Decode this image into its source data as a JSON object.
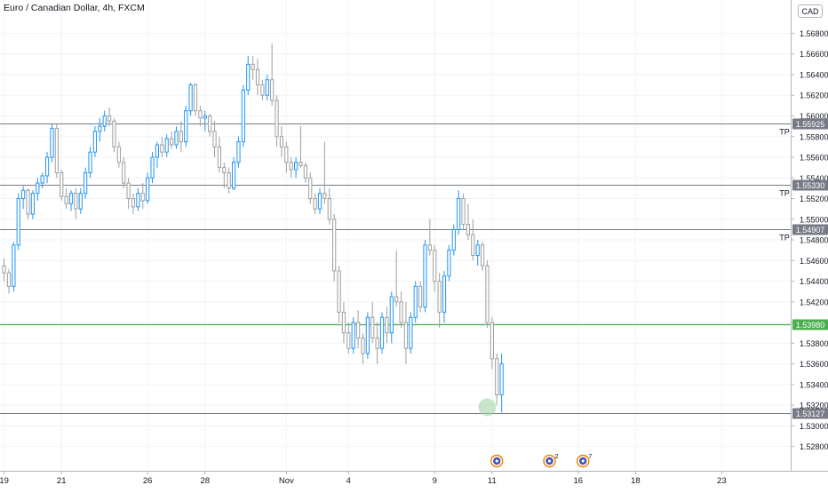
{
  "header": {
    "title": "Euro / Canadian Dollar, 4h, FXCM",
    "currency": "CAD"
  },
  "colors": {
    "up": "#2196f3",
    "down": "#9e9e9e",
    "level_line": "#787b86",
    "entry_line": "#4caf50",
    "marker": "#a5d6a7",
    "axis_text": "#131722"
  },
  "chart_data": {
    "type": "candlestick",
    "y_axis": {
      "min": 1.5275,
      "max": 1.5705,
      "ticks": [
        "1.56800",
        "1.56600",
        "1.56400",
        "1.56200",
        "1.56000",
        "1.55800",
        "1.55600",
        "1.55400",
        "1.55200",
        "1.55000",
        "1.54800",
        "1.54600",
        "1.54400",
        "1.54200",
        "1.54000",
        "1.53800",
        "1.53600",
        "1.53400",
        "1.53200",
        "1.53000",
        "1.52800"
      ]
    },
    "x_axis": {
      "ticks": [
        {
          "label": "19",
          "slot": 0
        },
        {
          "label": "21",
          "slot": 12
        },
        {
          "label": "26",
          "slot": 30
        },
        {
          "label": "28",
          "slot": 42
        },
        {
          "label": "Nov",
          "slot": 59
        },
        {
          "label": "4",
          "slot": 72
        },
        {
          "label": "9",
          "slot": 90
        },
        {
          "label": "11",
          "slot": 102
        },
        {
          "label": "16",
          "slot": 120
        },
        {
          "label": "18",
          "slot": 132
        },
        {
          "label": "23",
          "slot": 150
        }
      ]
    },
    "levels": [
      {
        "value": 1.55925,
        "label": "1.55925",
        "tag": "TP",
        "kind": "tp"
      },
      {
        "value": 1.5533,
        "label": "1.55330",
        "tag": "TP",
        "kind": "tp"
      },
      {
        "value": 1.54907,
        "label": "1.54907",
        "tag": "TP",
        "kind": "tp"
      },
      {
        "value": 1.5398,
        "label": "1.53980",
        "tag": "",
        "kind": "entry"
      },
      {
        "value": 1.53127,
        "label": "1.53127",
        "tag": "",
        "kind": "low"
      }
    ],
    "candles": [
      [
        1.5455,
        1.5462,
        1.544,
        1.5448
      ],
      [
        1.5448,
        1.5452,
        1.5428,
        1.5435
      ],
      [
        1.5435,
        1.5478,
        1.543,
        1.5475
      ],
      [
        1.5475,
        1.5525,
        1.547,
        1.552
      ],
      [
        1.552,
        1.5532,
        1.551,
        1.5528
      ],
      [
        1.5528,
        1.553,
        1.55,
        1.5505
      ],
      [
        1.5505,
        1.5528,
        1.55,
        1.5525
      ],
      [
        1.5525,
        1.554,
        1.5518,
        1.5535
      ],
      [
        1.5535,
        1.5545,
        1.553,
        1.5542
      ],
      [
        1.5542,
        1.5565,
        1.5535,
        1.556
      ],
      [
        1.556,
        1.5592,
        1.5555,
        1.5588
      ],
      [
        1.5588,
        1.5592,
        1.554,
        1.5545
      ],
      [
        1.5545,
        1.5548,
        1.5518,
        1.5522
      ],
      [
        1.5522,
        1.553,
        1.551,
        1.5515
      ],
      [
        1.5515,
        1.5528,
        1.5508,
        1.5525
      ],
      [
        1.5525,
        1.553,
        1.55,
        1.551
      ],
      [
        1.551,
        1.553,
        1.5505,
        1.5525
      ],
      [
        1.5525,
        1.555,
        1.552,
        1.5545
      ],
      [
        1.5545,
        1.557,
        1.554,
        1.5565
      ],
      [
        1.5565,
        1.559,
        1.556,
        1.5585
      ],
      [
        1.5585,
        1.5598,
        1.5575,
        1.559
      ],
      [
        1.559,
        1.5605,
        1.5585,
        1.56
      ],
      [
        1.56,
        1.5608,
        1.559,
        1.5595
      ],
      [
        1.5595,
        1.5598,
        1.5565,
        1.557
      ],
      [
        1.557,
        1.5575,
        1.555,
        1.5555
      ],
      [
        1.5555,
        1.556,
        1.553,
        1.5535
      ],
      [
        1.5535,
        1.554,
        1.551,
        1.552
      ],
      [
        1.552,
        1.5525,
        1.5505,
        1.5512
      ],
      [
        1.5512,
        1.553,
        1.5508,
        1.5525
      ],
      [
        1.5525,
        1.5535,
        1.551,
        1.5518
      ],
      [
        1.5518,
        1.5545,
        1.5515,
        1.554
      ],
      [
        1.554,
        1.5565,
        1.5535,
        1.556
      ],
      [
        1.556,
        1.5575,
        1.555,
        1.5572
      ],
      [
        1.5572,
        1.558,
        1.556,
        1.5565
      ],
      [
        1.5565,
        1.5582,
        1.556,
        1.5578
      ],
      [
        1.5578,
        1.5585,
        1.5568,
        1.5572
      ],
      [
        1.5572,
        1.559,
        1.5568,
        1.5585
      ],
      [
        1.5585,
        1.5595,
        1.5565,
        1.5575
      ],
      [
        1.5575,
        1.561,
        1.557,
        1.5605
      ],
      [
        1.5605,
        1.5632,
        1.56,
        1.563
      ],
      [
        1.563,
        1.5632,
        1.56,
        1.5605
      ],
      [
        1.5605,
        1.561,
        1.559,
        1.5598
      ],
      [
        1.5598,
        1.5605,
        1.5585,
        1.56
      ],
      [
        1.56,
        1.5602,
        1.558,
        1.5585
      ],
      [
        1.5585,
        1.5595,
        1.556,
        1.557
      ],
      [
        1.557,
        1.558,
        1.5545,
        1.555
      ],
      [
        1.555,
        1.5555,
        1.553,
        1.5545
      ],
      [
        1.5545,
        1.555,
        1.5525,
        1.553
      ],
      [
        1.553,
        1.556,
        1.5528,
        1.5555
      ],
      [
        1.5555,
        1.558,
        1.555,
        1.5575
      ],
      [
        1.5575,
        1.563,
        1.557,
        1.5625
      ],
      [
        1.5625,
        1.5658,
        1.562,
        1.565
      ],
      [
        1.565,
        1.5658,
        1.5635,
        1.5645
      ],
      [
        1.5645,
        1.5655,
        1.562,
        1.563
      ],
      [
        1.563,
        1.5635,
        1.5615,
        1.562
      ],
      [
        1.562,
        1.564,
        1.5615,
        1.5635
      ],
      [
        1.5635,
        1.567,
        1.561,
        1.5615
      ],
      [
        1.5615,
        1.562,
        1.557,
        1.558
      ],
      [
        1.558,
        1.559,
        1.556,
        1.557
      ],
      [
        1.557,
        1.5575,
        1.5545,
        1.5555
      ],
      [
        1.5555,
        1.556,
        1.554,
        1.5548
      ],
      [
        1.5548,
        1.556,
        1.554,
        1.5555
      ],
      [
        1.5555,
        1.559,
        1.555,
        1.5552
      ],
      [
        1.5552,
        1.5555,
        1.5535,
        1.554
      ],
      [
        1.554,
        1.5545,
        1.5515,
        1.552
      ],
      [
        1.552,
        1.5525,
        1.5505,
        1.551
      ],
      [
        1.551,
        1.553,
        1.5505,
        1.5525
      ],
      [
        1.5525,
        1.5575,
        1.5515,
        1.552
      ],
      [
        1.552,
        1.553,
        1.5495,
        1.55
      ],
      [
        1.55,
        1.5505,
        1.544,
        1.545
      ],
      [
        1.545,
        1.5455,
        1.54,
        1.541
      ],
      [
        1.541,
        1.542,
        1.538,
        1.539
      ],
      [
        1.539,
        1.54,
        1.537,
        1.5375
      ],
      [
        1.5375,
        1.5405,
        1.537,
        1.54
      ],
      [
        1.54,
        1.5412,
        1.5375,
        1.5385
      ],
      [
        1.5385,
        1.539,
        1.536,
        1.537
      ],
      [
        1.537,
        1.541,
        1.5365,
        1.5405
      ],
      [
        1.5405,
        1.542,
        1.538,
        1.5385
      ],
      [
        1.5385,
        1.54,
        1.536,
        1.5375
      ],
      [
        1.5375,
        1.541,
        1.537,
        1.5405
      ],
      [
        1.5405,
        1.5415,
        1.538,
        1.539
      ],
      [
        1.539,
        1.543,
        1.538,
        1.5425
      ],
      [
        1.5425,
        1.547,
        1.5415,
        1.542
      ],
      [
        1.542,
        1.543,
        1.5395,
        1.54
      ],
      [
        1.54,
        1.542,
        1.536,
        1.5375
      ],
      [
        1.5375,
        1.541,
        1.537,
        1.5405
      ],
      [
        1.5405,
        1.544,
        1.54,
        1.5435
      ],
      [
        1.5435,
        1.544,
        1.541,
        1.5415
      ],
      [
        1.5415,
        1.548,
        1.541,
        1.5475
      ],
      [
        1.5475,
        1.55,
        1.5465,
        1.547
      ],
      [
        1.547,
        1.5475,
        1.543,
        1.544
      ],
      [
        1.544,
        1.5448,
        1.5395,
        1.541
      ],
      [
        1.541,
        1.545,
        1.54,
        1.5445
      ],
      [
        1.5445,
        1.5475,
        1.544,
        1.547
      ],
      [
        1.547,
        1.5495,
        1.5465,
        1.549
      ],
      [
        1.549,
        1.5528,
        1.5485,
        1.552
      ],
      [
        1.552,
        1.5525,
        1.549,
        1.5495
      ],
      [
        1.5495,
        1.5515,
        1.548,
        1.5485
      ],
      [
        1.5485,
        1.55,
        1.546,
        1.5465
      ],
      [
        1.5465,
        1.548,
        1.5455,
        1.5475
      ],
      [
        1.5475,
        1.5478,
        1.545,
        1.5455
      ],
      [
        1.5455,
        1.546,
        1.5395,
        1.54
      ],
      [
        1.54,
        1.5405,
        1.5355,
        1.5365
      ],
      [
        1.5365,
        1.537,
        1.532,
        1.533
      ],
      [
        1.533,
        1.537,
        1.5313,
        1.536
      ]
    ],
    "marker": {
      "slot": 101,
      "value": 1.5318
    },
    "events": [
      {
        "slot": 103,
        "kind": "flag"
      },
      {
        "slot": 114,
        "kind": "flag",
        "count": "2"
      },
      {
        "slot": 121,
        "kind": "flag",
        "count": "7"
      }
    ]
  }
}
